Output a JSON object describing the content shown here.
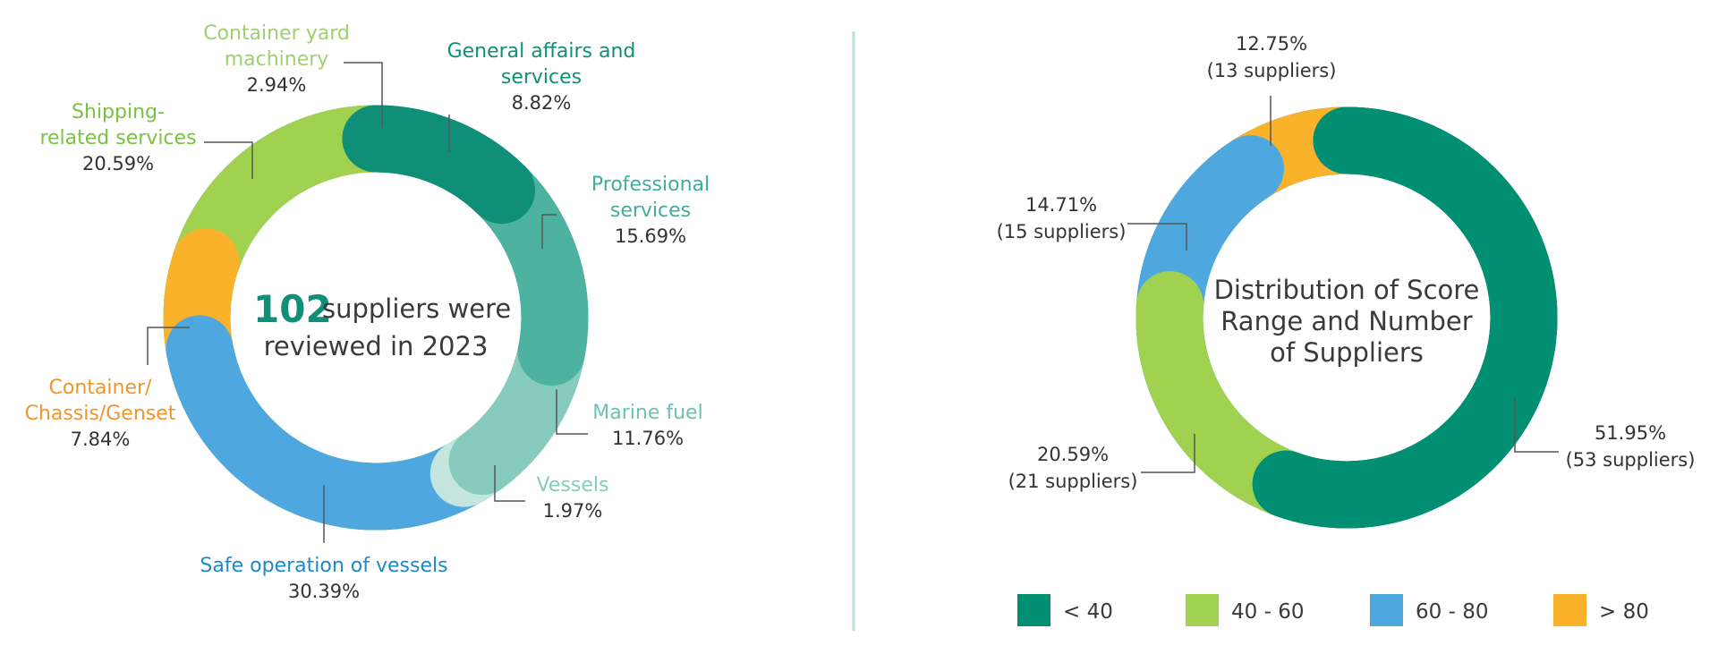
{
  "chart_data": [
    {
      "type": "pie",
      "center": {
        "number": "102",
        "text_line1": "suppliers were",
        "text_line2": "reviewed in 2023"
      },
      "slices": [
        {
          "name_lines": [
            "General affairs and",
            "services"
          ],
          "value": 8.82,
          "label": "8.82%",
          "color": "#0f8f78"
        },
        {
          "name_lines": [
            "Professional",
            "services"
          ],
          "value": 15.69,
          "label": "15.69%",
          "color": "#4db3a0"
        },
        {
          "name_lines": [
            "Marine fuel"
          ],
          "value": 11.76,
          "label": "11.76%",
          "color": "#86cbbd"
        },
        {
          "name_lines": [
            "Vessels"
          ],
          "value": 1.97,
          "label": "1.97%",
          "color": "#c4e6df"
        },
        {
          "name_lines": [
            "Safe operation of vessels"
          ],
          "value": 30.39,
          "label": "30.39%",
          "color": "#4ea8df"
        },
        {
          "name_lines": [
            "Container/",
            "Chassis/Genset"
          ],
          "value": 7.84,
          "label": "7.84%",
          "color": "#fbb22b"
        },
        {
          "name_lines": [
            "Shipping-",
            "related services"
          ],
          "value": 20.59,
          "label": "20.59%",
          "color": "#a0d24f"
        },
        {
          "name_lines": [
            "Container yard",
            "machinery"
          ],
          "value": 2.94,
          "label": "2.94%",
          "color": "#d1ebaa"
        }
      ],
      "name_colors": [
        "#0f8f78",
        "#3fae9b",
        "#6cc1b1",
        "#86cbbd",
        "#1b8ac7",
        "#f0952b",
        "#7cc242",
        "#9fd070"
      ]
    },
    {
      "type": "pie",
      "title_lines": [
        "Distribution of Score",
        "Range and Number",
        "of Suppliers"
      ],
      "slices": [
        {
          "category": "< 40",
          "value": 51.95,
          "pct_label": "51.95%",
          "count_label": "(53 suppliers)",
          "color": "#008f72"
        },
        {
          "category": "40 - 60",
          "value": 20.59,
          "pct_label": "20.59%",
          "count_label": "(21 suppliers)",
          "color": "#a0d24f"
        },
        {
          "category": "60 - 80",
          "value": 14.71,
          "pct_label": "14.71%",
          "count_label": "(15 suppliers)",
          "color": "#4ea8df"
        },
        {
          "category": "> 80",
          "value": 12.75,
          "pct_label": "12.75%",
          "count_label": "(13 suppliers)",
          "color": "#fbb22b"
        }
      ],
      "legend": [
        "< 40",
        "40 - 60",
        "60 - 80",
        "> 80"
      ],
      "legend_placement": "bottom"
    }
  ],
  "colors": {
    "divider": "#b9dfdc",
    "text": "#333333"
  }
}
